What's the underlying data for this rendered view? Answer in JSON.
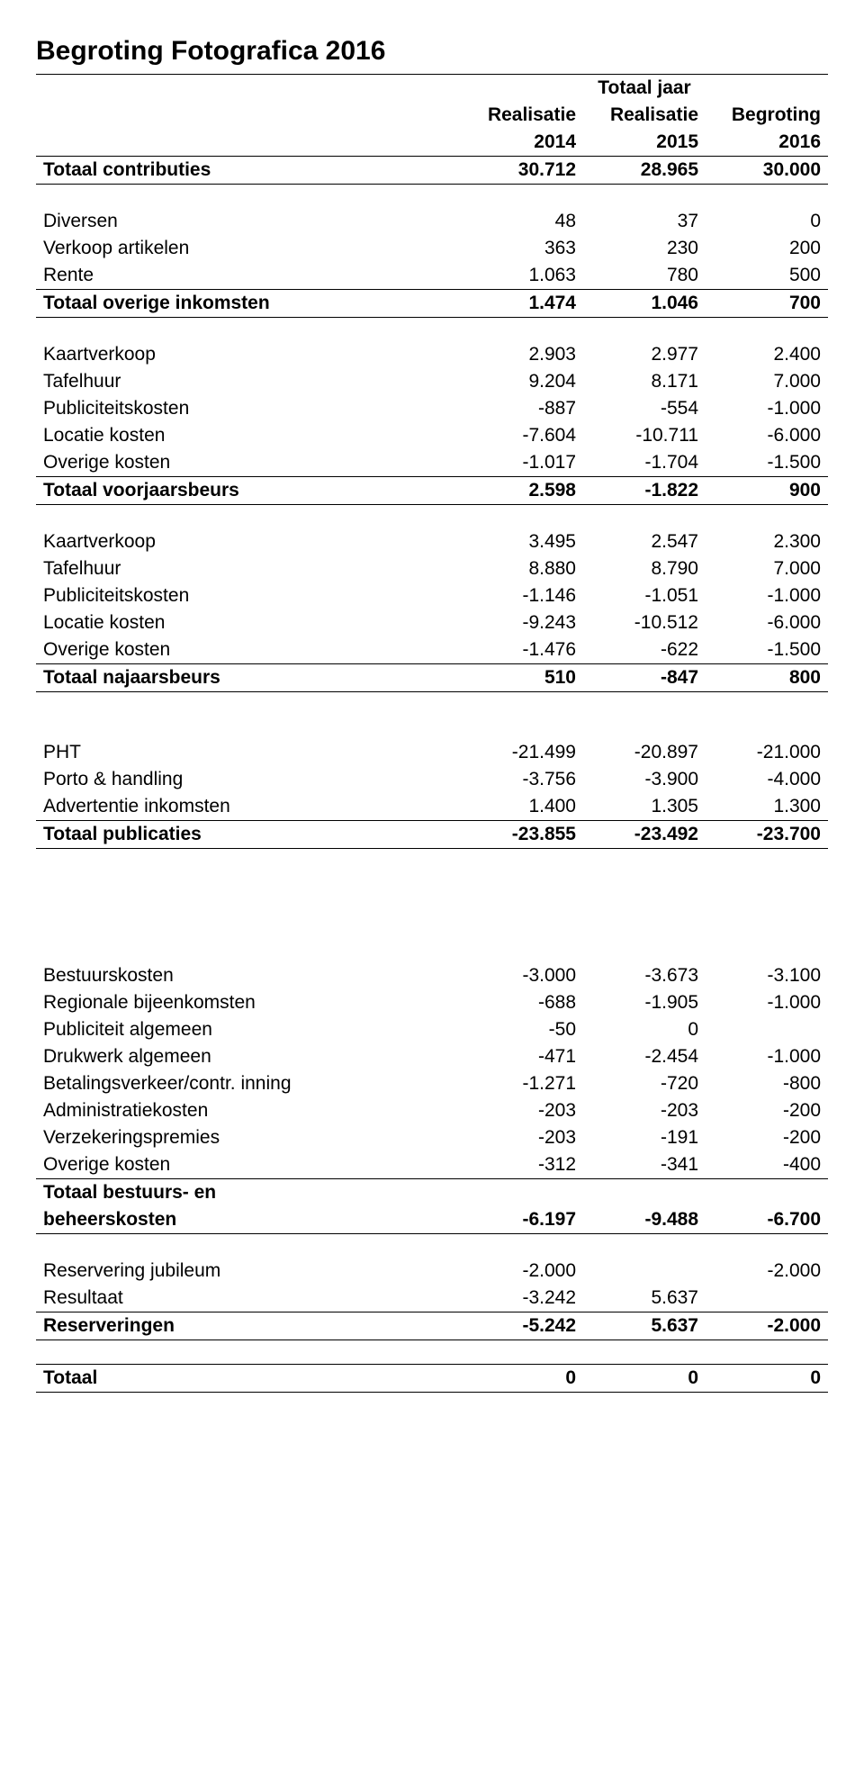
{
  "title": "Begroting Fotografica  2016",
  "header": {
    "super": "Totaal jaar",
    "col1a": "Realisatie",
    "col1b": "2014",
    "col2a": "Realisatie",
    "col2b": "2015",
    "col3a": "Begroting",
    "col3b": "2016"
  },
  "sections": {
    "contrib": {
      "label": "Totaal contributies",
      "v": [
        "30.712",
        "28.965",
        "30.000"
      ]
    },
    "diversen": {
      "label": "Diversen",
      "v": [
        "48",
        "37",
        "0"
      ]
    },
    "verkoop": {
      "label": "Verkoop artikelen",
      "v": [
        "363",
        "230",
        "200"
      ]
    },
    "rente": {
      "label": "Rente",
      "v": [
        "1.063",
        "780",
        "500"
      ]
    },
    "overige_ink": {
      "label": "Totaal overige inkomsten",
      "v": [
        "1.474",
        "1.046",
        "700"
      ]
    },
    "kv1": {
      "label": "Kaartverkoop",
      "v": [
        "2.903",
        "2.977",
        "2.400"
      ]
    },
    "th1": {
      "label": "Tafelhuur",
      "v": [
        "9.204",
        "8.171",
        "7.000"
      ]
    },
    "pk1": {
      "label": "Publiciteitskosten",
      "v": [
        "-887",
        "-554",
        "-1.000"
      ]
    },
    "lk1": {
      "label": "Locatie kosten",
      "v": [
        "-7.604",
        "-10.711",
        "-6.000"
      ]
    },
    "ok1": {
      "label": "Overige kosten",
      "v": [
        "-1.017",
        "-1.704",
        "-1.500"
      ]
    },
    "voorjaar": {
      "label": "Totaal voorjaarsbeurs",
      "v": [
        "2.598",
        "-1.822",
        "900"
      ]
    },
    "kv2": {
      "label": "Kaartverkoop",
      "v": [
        "3.495",
        "2.547",
        "2.300"
      ]
    },
    "th2": {
      "label": "Tafelhuur",
      "v": [
        "8.880",
        "8.790",
        "7.000"
      ]
    },
    "pk2": {
      "label": "Publiciteitskosten",
      "v": [
        "-1.146",
        "-1.051",
        "-1.000"
      ]
    },
    "lk2": {
      "label": "Locatie kosten",
      "v": [
        "-9.243",
        "-10.512",
        "-6.000"
      ]
    },
    "ok2": {
      "label": "Overige kosten",
      "v": [
        "-1.476",
        "-622",
        "-1.500"
      ]
    },
    "najaar": {
      "label": "Totaal najaarsbeurs",
      "v": [
        "510",
        "-847",
        "800"
      ]
    },
    "pht": {
      "label": "PHT",
      "v": [
        "-21.499",
        "-20.897",
        "-21.000"
      ]
    },
    "porto": {
      "label": "Porto & handling",
      "v": [
        "-3.756",
        "-3.900",
        "-4.000"
      ]
    },
    "adv": {
      "label": "Advertentie inkomsten",
      "v": [
        "1.400",
        "1.305",
        "1.300"
      ]
    },
    "pub": {
      "label": "Totaal publicaties",
      "v": [
        "-23.855",
        "-23.492",
        "-23.700"
      ]
    },
    "bestuur": {
      "label": "Bestuurskosten",
      "v": [
        "-3.000",
        "-3.673",
        "-3.100"
      ]
    },
    "regio": {
      "label": "Regionale bijeenkomsten",
      "v": [
        "-688",
        "-1.905",
        "-1.000"
      ]
    },
    "pubalg": {
      "label": "Publiciteit algemeen",
      "v": [
        "-50",
        "0",
        ""
      ]
    },
    "druk": {
      "label": "Drukwerk algemeen",
      "v": [
        "-471",
        "-2.454",
        "-1.000"
      ]
    },
    "betaal": {
      "label": "Betalingsverkeer/contr. inning",
      "v": [
        "-1.271",
        "-720",
        "-800"
      ]
    },
    "admin": {
      "label": "Administratiekosten",
      "v": [
        "-203",
        "-203",
        "-200"
      ]
    },
    "verz": {
      "label": "Verzekeringspremies",
      "v": [
        "-203",
        "-191",
        "-200"
      ]
    },
    "ok3": {
      "label": "Overige kosten",
      "v": [
        "-312",
        "-341",
        "-400"
      ]
    },
    "beheer_a": "Totaal bestuurs- en",
    "beheer_b": {
      "label": "beheerskosten",
      "v": [
        "-6.197",
        "-9.488",
        "-6.700"
      ]
    },
    "resjub": {
      "label": "Reservering jubileum",
      "v": [
        "-2.000",
        "",
        "-2.000"
      ]
    },
    "result": {
      "label": "Resultaat",
      "v": [
        "-3.242",
        "5.637",
        ""
      ]
    },
    "reserv": {
      "label": "Reserveringen",
      "v": [
        "-5.242",
        "5.637",
        "-2.000"
      ]
    },
    "totaal": {
      "label": "Totaal",
      "v": [
        "0",
        "0",
        "0"
      ]
    }
  }
}
